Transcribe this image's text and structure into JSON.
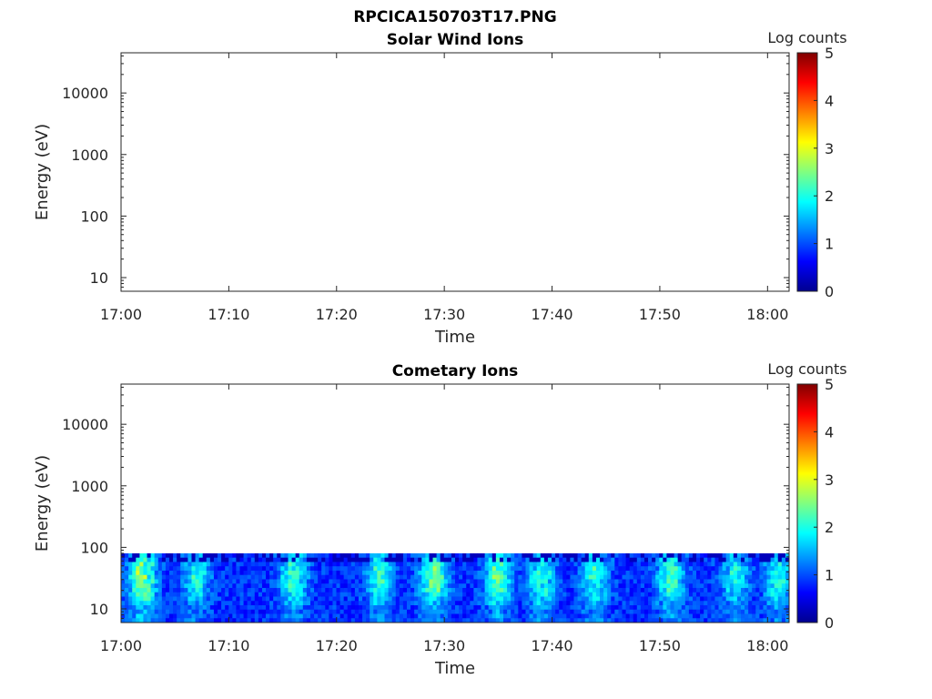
{
  "figure": {
    "title": "RPCICA150703T17.PNG"
  },
  "colorscale": [
    "#00008f",
    "#0000ff",
    "#0080ff",
    "#00ffff",
    "#80ff80",
    "#ffff00",
    "#ff8000",
    "#ff0000",
    "#800000"
  ],
  "chart_data": [
    {
      "type": "heatmap",
      "title": "Solar Wind Ions",
      "xlabel": "Time",
      "ylabel": "Energy (eV)",
      "y_scale": "log",
      "ylim": [
        6,
        45000
      ],
      "yticks": [
        10,
        100,
        1000,
        10000
      ],
      "ytick_labels": [
        "10",
        "100",
        "1000",
        "10000"
      ],
      "xlim": [
        "17:00",
        "18:02"
      ],
      "xtick_labels": [
        "17:00",
        "17:10",
        "17:20",
        "17:30",
        "17:40",
        "17:50",
        "18:00"
      ],
      "colorbar": {
        "label": "Log counts",
        "range": [
          0,
          5
        ],
        "ticks": [
          "0",
          "1",
          "2",
          "3",
          "4",
          "5"
        ]
      },
      "data": []
    },
    {
      "type": "heatmap",
      "title": "Cometary Ions",
      "xlabel": "Time",
      "ylabel": "Energy (eV)",
      "y_scale": "log",
      "ylim": [
        6,
        45000
      ],
      "yticks": [
        10,
        100,
        1000,
        10000
      ],
      "ytick_labels": [
        "10",
        "100",
        "1000",
        "10000"
      ],
      "xlim": [
        "17:00",
        "18:02"
      ],
      "xtick_labels": [
        "17:00",
        "17:10",
        "17:20",
        "17:30",
        "17:40",
        "17:50",
        "18:00"
      ],
      "colorbar": {
        "label": "Log counts",
        "range": [
          0,
          5
        ],
        "ticks": [
          "0",
          "1",
          "2",
          "3",
          "4",
          "5"
        ]
      },
      "energy_range_eV": [
        6,
        80
      ],
      "peak_times": [
        "17:02",
        "17:07",
        "17:16",
        "17:24",
        "17:29",
        "17:35",
        "17:39",
        "17:44",
        "17:51",
        "17:57",
        "18:01"
      ],
      "peak_log_counts": [
        2.8,
        2.1,
        2.3,
        2.2,
        2.6,
        2.5,
        2.3,
        2.2,
        2.4,
        2.1,
        2.2
      ],
      "background_log_counts": 1.0
    }
  ]
}
